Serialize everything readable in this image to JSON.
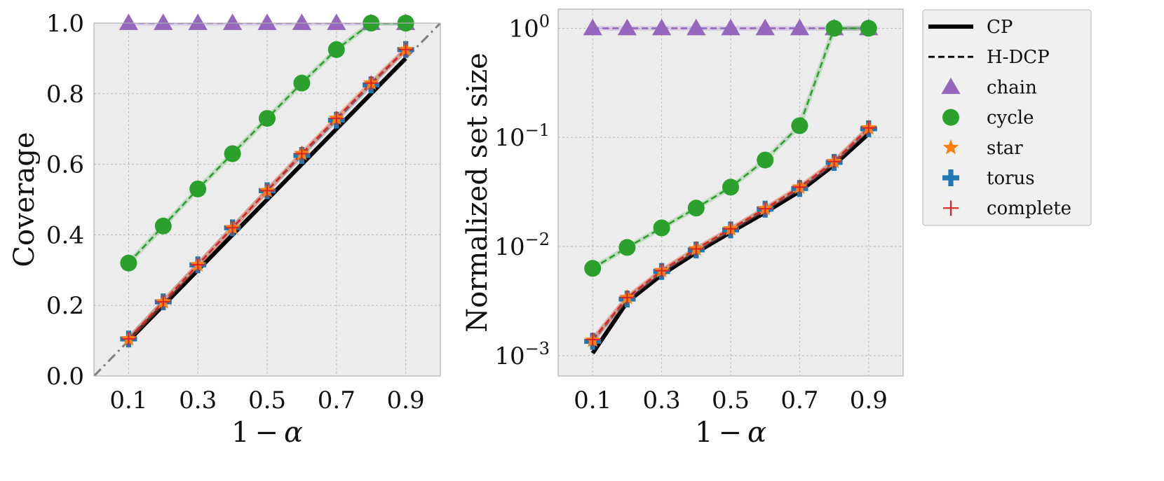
{
  "chart_data": [
    {
      "type": "line",
      "panel": "left",
      "ylabel": "Coverage",
      "xlabel_parts": [
        "1",
        "−",
        "α"
      ],
      "x": [
        0.1,
        0.2,
        0.3,
        0.4,
        0.5,
        0.6,
        0.7,
        0.8,
        0.9
      ],
      "xlim": [
        0.0,
        1.0
      ],
      "ylim": [
        0.0,
        1.0
      ],
      "yscale": "linear",
      "x_ticks": [
        "0.1",
        "0.3",
        "0.5",
        "0.7",
        "0.9"
      ],
      "x_tick_values": [
        0.1,
        0.3,
        0.5,
        0.7,
        0.9
      ],
      "y_ticks": [
        "0.0",
        "0.2",
        "0.4",
        "0.6",
        "0.8",
        "1.0"
      ],
      "y_tick_values": [
        0.0,
        0.2,
        0.4,
        0.6,
        0.8,
        1.0
      ],
      "diagonal_reference": true,
      "grid": true,
      "cp": [
        0.1,
        0.2,
        0.3,
        0.4,
        0.5,
        0.6,
        0.7,
        0.8,
        0.9
      ],
      "series": [
        {
          "name": "chain",
          "values": [
            1.0,
            1.0,
            1.0,
            1.0,
            1.0,
            1.0,
            1.0,
            1.0,
            1.0
          ]
        },
        {
          "name": "cycle",
          "values": [
            0.32,
            0.425,
            0.53,
            0.63,
            0.73,
            0.83,
            0.925,
            1.0,
            1.0
          ]
        },
        {
          "name": "star",
          "values": [
            0.105,
            0.21,
            0.315,
            0.42,
            0.525,
            0.63,
            0.73,
            0.83,
            0.925
          ]
        },
        {
          "name": "torus",
          "values": [
            0.105,
            0.21,
            0.315,
            0.42,
            0.525,
            0.625,
            0.725,
            0.825,
            0.925
          ]
        },
        {
          "name": "complete",
          "values": [
            0.105,
            0.21,
            0.315,
            0.42,
            0.525,
            0.63,
            0.73,
            0.83,
            0.925
          ]
        }
      ]
    },
    {
      "type": "line",
      "panel": "right",
      "ylabel": "Normalized set size",
      "xlabel_parts": [
        "1",
        "−",
        "α"
      ],
      "x": [
        0.1,
        0.2,
        0.3,
        0.4,
        0.5,
        0.6,
        0.7,
        0.8,
        0.9
      ],
      "xlim": [
        0.0,
        1.0
      ],
      "ylim": [
        0.00065,
        1.5
      ],
      "yscale": "log",
      "x_ticks": [
        "0.1",
        "0.3",
        "0.5",
        "0.7",
        "0.9"
      ],
      "x_tick_values": [
        0.1,
        0.3,
        0.5,
        0.7,
        0.9
      ],
      "y_ticks": [
        {
          "base": "10",
          "exp": "−3",
          "value": 0.001
        },
        {
          "base": "10",
          "exp": "−2",
          "value": 0.01
        },
        {
          "base": "10",
          "exp": "−1",
          "value": 0.1
        },
        {
          "base": "10",
          "exp": "0",
          "value": 1
        }
      ],
      "grid": true,
      "cp": [
        0.00105,
        0.0031,
        0.0055,
        0.0088,
        0.0135,
        0.0205,
        0.032,
        0.056,
        0.108
      ],
      "series": [
        {
          "name": "chain",
          "values": [
            1.0,
            1.0,
            1.0,
            1.0,
            1.0,
            1.0,
            1.0,
            1.0,
            1.0
          ]
        },
        {
          "name": "cycle",
          "values": [
            0.0063,
            0.0098,
            0.0148,
            0.0225,
            0.035,
            0.062,
            0.128,
            1.0,
            1.0
          ]
        },
        {
          "name": "star",
          "values": [
            0.00138,
            0.0034,
            0.006,
            0.0095,
            0.0145,
            0.0222,
            0.035,
            0.06,
            0.122
          ]
        },
        {
          "name": "torus",
          "values": [
            0.00135,
            0.0033,
            0.0059,
            0.0093,
            0.0142,
            0.022,
            0.034,
            0.059,
            0.12
          ]
        },
        {
          "name": "complete",
          "values": [
            0.0014,
            0.0034,
            0.006,
            0.0095,
            0.0145,
            0.0222,
            0.035,
            0.06,
            0.122
          ]
        }
      ]
    }
  ],
  "legend": {
    "placement": "outside-right",
    "entries": [
      {
        "label": "CP",
        "marker": "solid-line"
      },
      {
        "label": "H-DCP",
        "marker": "dashed-line"
      },
      {
        "label": "chain",
        "marker": "triangle"
      },
      {
        "label": "cycle",
        "marker": "circle"
      },
      {
        "label": "star",
        "marker": "star"
      },
      {
        "label": "torus",
        "marker": "plus-filled"
      },
      {
        "label": "complete",
        "marker": "plus-thin"
      }
    ]
  },
  "colors": {
    "chain": "#9467bd",
    "cycle": "#2ca02c",
    "star": "#ff7f0e",
    "torus": "#1f77b4",
    "complete": "#d62728",
    "cp": "#000000",
    "axes_bg": "#ececec",
    "grid": "#b8b8b8",
    "diagonal": "#7f7f7f"
  }
}
